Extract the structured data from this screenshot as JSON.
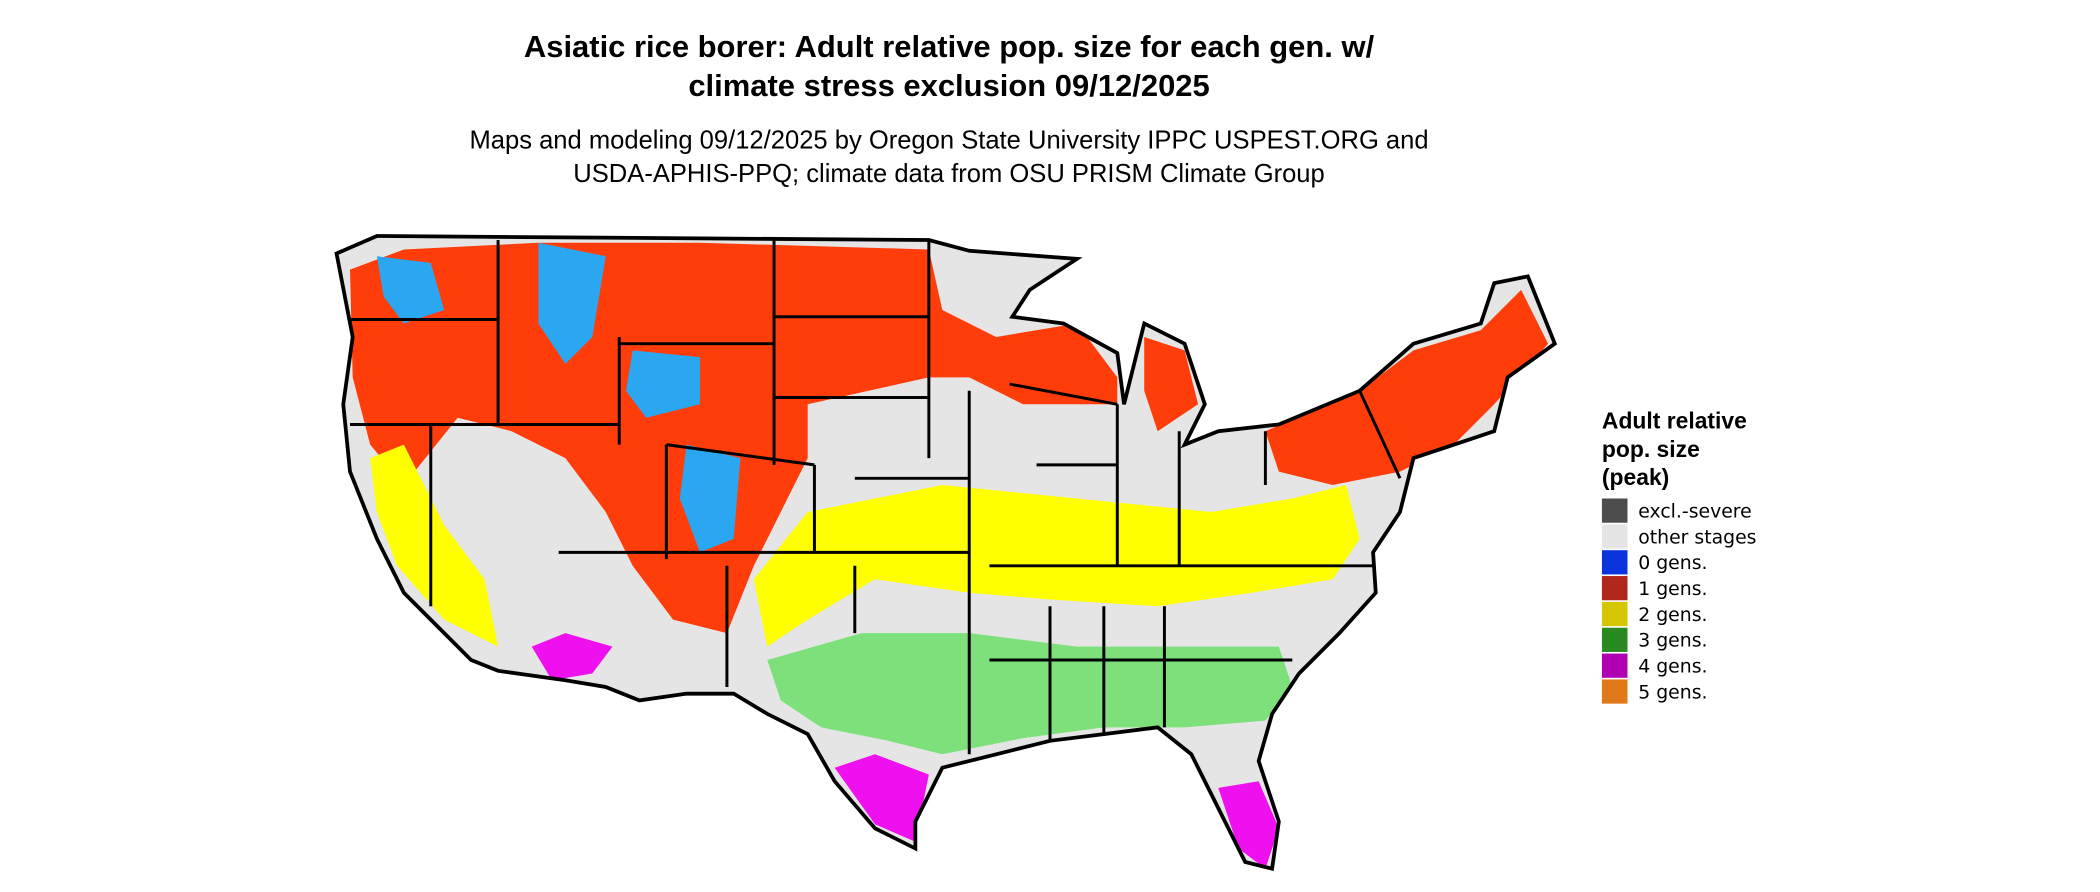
{
  "header": {
    "title_lines": [
      "Asiatic rice borer: Adult relative pop. size for each gen. w/",
      "climate stress exclusion 09/12/2025"
    ],
    "subtitle_lines": [
      "Maps and modeling 09/12/2025 by Oregon State University IPPC USPEST.ORG and",
      "USDA-APHIS-PPQ; climate data from OSU PRISM Climate Group"
    ]
  },
  "legend": {
    "title_lines": [
      "Adult relative",
      "pop. size",
      "(peak)"
    ],
    "items": [
      {
        "label": "excl.-severe",
        "color": "#4d4d4d"
      },
      {
        "label": "other stages",
        "color": "#e5e5e5"
      },
      {
        "label": "0 gens.",
        "color": "#0b35dc"
      },
      {
        "label": "1 gens.",
        "color": "#b0281c"
      },
      {
        "label": "2 gens.",
        "color": "#d6c600"
      },
      {
        "label": "3 gens.",
        "color": "#2a8a22"
      },
      {
        "label": "4 gens.",
        "color": "#b000b4"
      },
      {
        "label": "5 gens.",
        "color": "#e07a18"
      }
    ]
  }
}
